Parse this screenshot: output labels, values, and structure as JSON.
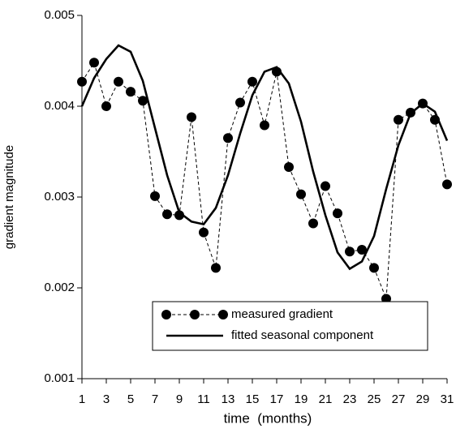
{
  "chart_data": {
    "type": "line",
    "x_label": "time  (months)",
    "y_label": "gradient magnitude",
    "x": [
      1,
      2,
      3,
      4,
      5,
      6,
      7,
      8,
      9,
      10,
      11,
      12,
      13,
      14,
      15,
      16,
      17,
      18,
      19,
      20,
      21,
      22,
      23,
      24,
      25,
      26,
      27,
      28,
      29,
      30,
      31
    ],
    "series": [
      {
        "name": "measured gradient",
        "color": "#000000",
        "line_style": "dashed",
        "marker": "circle",
        "values": [
          0.00427,
          0.00448,
          0.004,
          0.00427,
          0.00416,
          0.00406,
          0.00301,
          0.00281,
          0.0028,
          0.00388,
          0.00261,
          0.00222,
          0.00365,
          0.00404,
          0.00427,
          0.00379,
          0.00438,
          0.00333,
          0.00303,
          0.00271,
          0.00312,
          0.00282,
          0.0024,
          0.00242,
          0.00222,
          0.00188,
          0.00385,
          0.00393,
          0.00403,
          0.00385,
          0.00314
        ]
      },
      {
        "name": "fitted seasonal component",
        "color": "#000000",
        "line_style": "solid",
        "marker": "none",
        "values": [
          0.004,
          0.00431,
          0.00452,
          0.00467,
          0.0046,
          0.00428,
          0.00376,
          0.00324,
          0.00283,
          0.00273,
          0.0027,
          0.00288,
          0.00324,
          0.0037,
          0.00412,
          0.00438,
          0.00443,
          0.00425,
          0.00383,
          0.00328,
          0.0028,
          0.00239,
          0.00221,
          0.00229,
          0.00257,
          0.00309,
          0.00357,
          0.00392,
          0.00403,
          0.00394,
          0.00362
        ]
      }
    ],
    "xlim": [
      1,
      31
    ],
    "xticks": [
      1,
      3,
      5,
      7,
      9,
      11,
      13,
      15,
      17,
      19,
      21,
      23,
      25,
      27,
      29,
      31
    ],
    "ylim": [
      0.001,
      0.005
    ],
    "yticks": [
      0.001,
      0.002,
      0.003,
      0.004,
      0.005
    ],
    "grid": false,
    "legend": "lower center"
  }
}
